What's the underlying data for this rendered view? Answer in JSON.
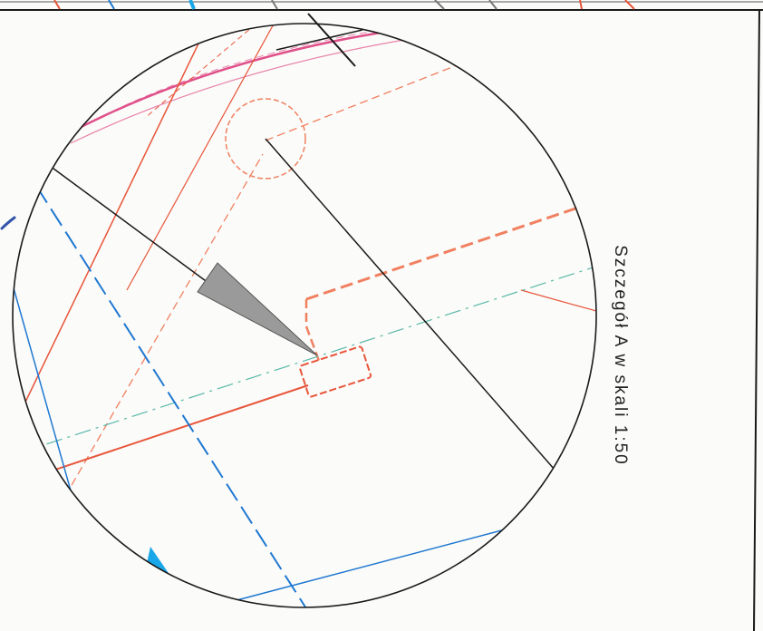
{
  "detail_caption": "Szczegół A w skali 1:50",
  "colors": {
    "paper": "#fbfbf9",
    "outline": "#1a1a1a",
    "red_utility": "#e8553a",
    "orange_dashed": "#f08060",
    "blue_utility": "#1f78d1",
    "cyan_line": "#58b8a8",
    "magenta_line": "#e0508a",
    "marker_arrow": "#9a9a9a",
    "marker_blue": "#1aa7e8",
    "pen_mark": "#3355aa"
  }
}
